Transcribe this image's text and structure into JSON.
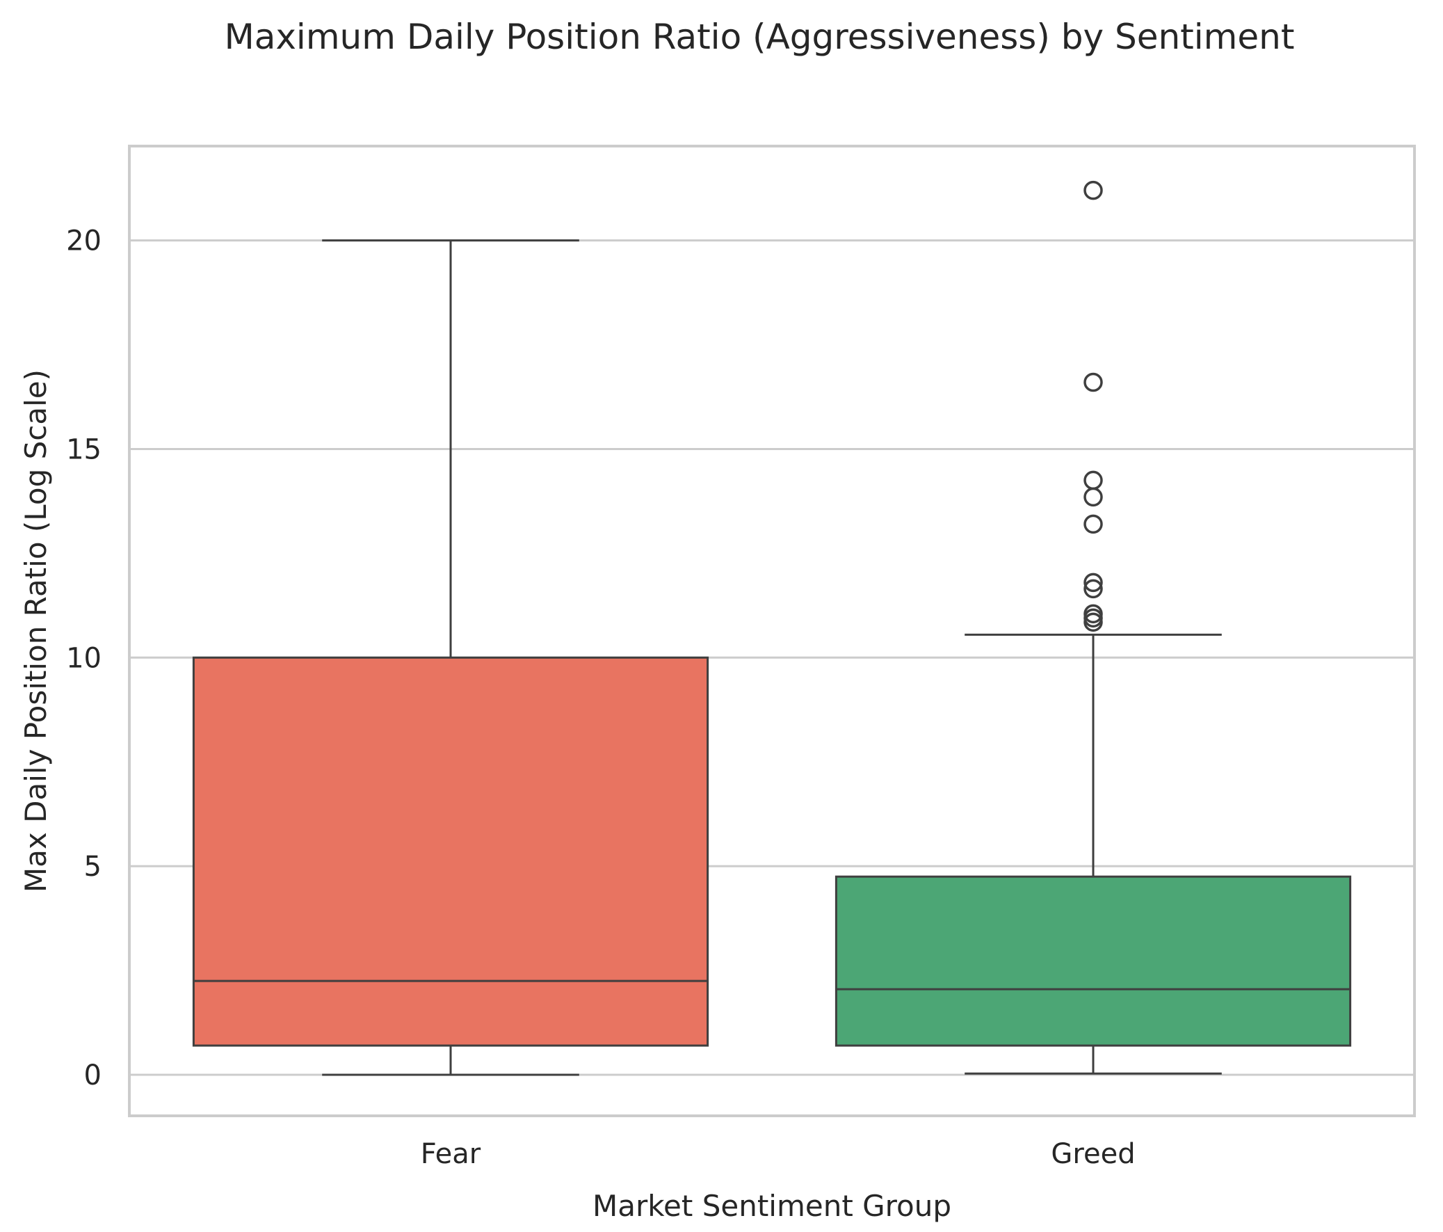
{
  "chart_data": {
    "type": "box",
    "title": "Maximum Daily Position Ratio (Aggressiveness) by Sentiment",
    "xlabel": "Market Sentiment Group",
    "ylabel": "Max Daily Position Ratio (Log Scale)",
    "categories": [
      "Fear",
      "Greed"
    ],
    "ylim": [
      -1.05,
      22.3
    ],
    "yticks": [
      0,
      5,
      10,
      15,
      20
    ],
    "ytick_labels": [
      "0",
      "5",
      "10",
      "15",
      "20"
    ],
    "grid": true,
    "legend": "none",
    "boxes": [
      {
        "category": "Fear",
        "color": "#E87461",
        "whisker_low": 0.0,
        "q1": 0.7,
        "median": 2.25,
        "q3": 10.0,
        "whisker_high": 20.0,
        "outliers": []
      },
      {
        "category": "Greed",
        "color": "#4CA675",
        "whisker_low": 0.03,
        "q1": 0.7,
        "median": 2.05,
        "q3": 4.75,
        "whisker_high": 10.55,
        "outliers": [
          21.2,
          16.6,
          14.25,
          13.85,
          13.2,
          11.8,
          11.65,
          11.05,
          10.95,
          10.85
        ]
      }
    ],
    "colors": {
      "box_edge": "#3f3f3f",
      "grid": "#cccccc",
      "frame": "#cccccc"
    }
  }
}
